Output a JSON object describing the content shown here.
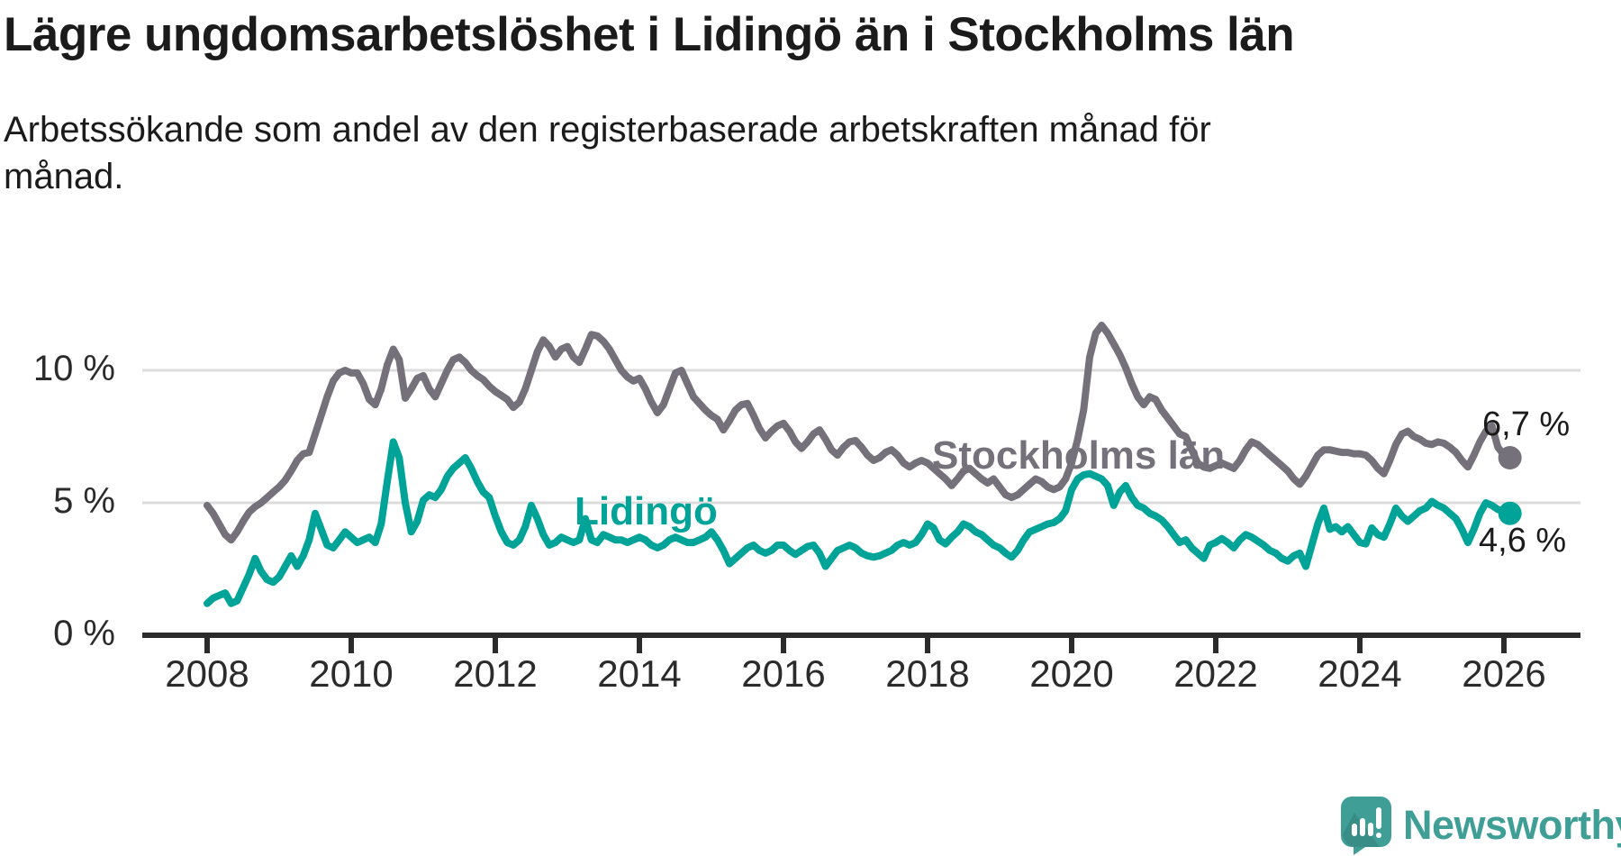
{
  "header": {
    "title": "Lägre ungdomsarbetslöshet i Lidingö än i Stockholms län",
    "subtitle": "Arbetssökande som andel av den registerbaserade arbetskraften månad för\nmånad."
  },
  "chart_data": {
    "type": "line",
    "title": "Lägre ungdomsarbetslöshet i Lidingö än i Stockholms län",
    "subtitle": "Arbetssökande som andel av den registerbaserade arbetskraften månad för månad.",
    "x_start_year": 2008,
    "x_step_months": 1,
    "x_end_label_period": "2026-02",
    "xlim": [
      2007.1,
      2027.1
    ],
    "ylim": [
      0,
      12
    ],
    "grid": "horizontal",
    "legend": "inline-labels",
    "x_ticks": [
      2008,
      2010,
      2012,
      2014,
      2016,
      2018,
      2020,
      2022,
      2024,
      2026
    ],
    "y_ticks": [
      {
        "value": 0,
        "label": "0 %"
      },
      {
        "value": 5,
        "label": "5 %"
      },
      {
        "value": 10,
        "label": "10 %"
      }
    ],
    "series": [
      {
        "name": "Stockholms län",
        "color": "#75717a",
        "end_label": "6,7 %",
        "values": [
          4.9,
          4.6,
          4.2,
          3.8,
          3.6,
          3.9,
          4.3,
          4.65,
          4.85,
          5.0,
          5.2,
          5.4,
          5.6,
          5.85,
          6.2,
          6.6,
          6.85,
          6.9,
          7.6,
          8.3,
          9.0,
          9.6,
          9.9,
          10.0,
          9.9,
          9.9,
          9.5,
          8.9,
          8.7,
          9.3,
          10.2,
          10.8,
          10.4,
          8.95,
          9.3,
          9.7,
          9.8,
          9.3,
          9.0,
          9.5,
          10.0,
          10.4,
          10.5,
          10.3,
          10.0,
          9.8,
          9.65,
          9.4,
          9.2,
          9.05,
          8.9,
          8.6,
          8.8,
          9.3,
          10.0,
          10.7,
          11.15,
          10.9,
          10.5,
          10.8,
          10.9,
          10.5,
          10.3,
          10.8,
          11.35,
          11.3,
          11.1,
          10.8,
          10.4,
          10.0,
          9.75,
          9.6,
          9.7,
          9.3,
          8.8,
          8.4,
          8.7,
          9.3,
          9.9,
          10.0,
          9.5,
          9.0,
          8.75,
          8.5,
          8.3,
          8.15,
          7.75,
          8.1,
          8.5,
          8.7,
          8.75,
          8.3,
          7.8,
          7.45,
          7.7,
          7.9,
          8.0,
          7.7,
          7.3,
          7.05,
          7.3,
          7.6,
          7.75,
          7.4,
          7.0,
          6.8,
          7.1,
          7.3,
          7.35,
          7.1,
          6.8,
          6.6,
          6.7,
          6.9,
          7.0,
          6.8,
          6.5,
          6.35,
          6.5,
          6.6,
          6.5,
          6.3,
          6.1,
          5.9,
          5.65,
          5.9,
          6.2,
          6.3,
          6.1,
          5.9,
          5.75,
          5.9,
          5.6,
          5.3,
          5.2,
          5.3,
          5.5,
          5.7,
          5.9,
          5.8,
          5.6,
          5.5,
          5.6,
          5.9,
          6.5,
          7.4,
          8.5,
          10.5,
          11.4,
          11.7,
          11.4,
          11.0,
          10.6,
          10.1,
          9.5,
          9.0,
          8.7,
          9.0,
          8.9,
          8.5,
          8.2,
          7.9,
          7.6,
          7.5,
          7.0,
          6.5,
          6.35,
          6.3,
          6.4,
          6.5,
          6.4,
          6.3,
          6.6,
          7.0,
          7.3,
          7.2,
          7.0,
          6.8,
          6.6,
          6.4,
          6.2,
          5.9,
          5.7,
          6.0,
          6.4,
          6.8,
          7.0,
          7.0,
          6.95,
          6.9,
          6.9,
          6.85,
          6.85,
          6.8,
          6.6,
          6.3,
          6.1,
          6.6,
          7.2,
          7.6,
          7.7,
          7.5,
          7.4,
          7.25,
          7.2,
          7.3,
          7.25,
          7.1,
          6.9,
          6.6,
          6.35,
          6.8,
          7.3,
          7.7,
          7.9,
          7.1,
          6.8,
          6.7
        ]
      },
      {
        "name": "Lidingö",
        "color": "#00a397",
        "end_label": "4,6 %",
        "values": [
          1.2,
          1.4,
          1.5,
          1.6,
          1.2,
          1.3,
          1.8,
          2.3,
          2.9,
          2.4,
          2.1,
          2.0,
          2.2,
          2.6,
          3.0,
          2.6,
          3.0,
          3.6,
          4.6,
          4.0,
          3.4,
          3.3,
          3.6,
          3.9,
          3.7,
          3.5,
          3.6,
          3.7,
          3.5,
          4.2,
          5.8,
          7.3,
          6.7,
          5.0,
          3.9,
          4.3,
          5.1,
          5.3,
          5.2,
          5.5,
          6.0,
          6.3,
          6.5,
          6.7,
          6.3,
          5.8,
          5.4,
          5.2,
          4.5,
          3.9,
          3.5,
          3.4,
          3.6,
          4.1,
          4.9,
          4.4,
          3.8,
          3.4,
          3.5,
          3.7,
          3.6,
          3.5,
          3.6,
          4.4,
          3.6,
          3.5,
          3.8,
          3.7,
          3.6,
          3.6,
          3.5,
          3.6,
          3.7,
          3.6,
          3.4,
          3.3,
          3.4,
          3.6,
          3.7,
          3.6,
          3.5,
          3.5,
          3.6,
          3.7,
          3.9,
          3.6,
          3.2,
          2.7,
          2.9,
          3.1,
          3.3,
          3.4,
          3.2,
          3.1,
          3.2,
          3.4,
          3.4,
          3.2,
          3.05,
          3.2,
          3.35,
          3.4,
          3.1,
          2.6,
          2.9,
          3.2,
          3.3,
          3.4,
          3.3,
          3.1,
          3.0,
          2.95,
          3.0,
          3.1,
          3.2,
          3.4,
          3.5,
          3.4,
          3.5,
          3.8,
          4.2,
          4.05,
          3.6,
          3.45,
          3.7,
          3.9,
          4.2,
          4.1,
          3.9,
          3.8,
          3.6,
          3.4,
          3.3,
          3.1,
          2.95,
          3.2,
          3.6,
          3.9,
          4.0,
          4.1,
          4.2,
          4.25,
          4.4,
          4.7,
          5.5,
          5.9,
          6.05,
          6.1,
          6.0,
          5.9,
          5.65,
          4.9,
          5.4,
          5.65,
          5.2,
          4.9,
          4.8,
          4.6,
          4.5,
          4.35,
          4.1,
          3.8,
          3.5,
          3.6,
          3.3,
          3.1,
          2.9,
          3.4,
          3.5,
          3.65,
          3.5,
          3.3,
          3.6,
          3.8,
          3.7,
          3.55,
          3.4,
          3.2,
          3.1,
          2.9,
          2.8,
          3.0,
          3.1,
          2.6,
          3.4,
          4.2,
          4.8,
          4.0,
          4.1,
          3.9,
          4.1,
          3.8,
          3.5,
          3.45,
          4.05,
          3.8,
          3.7,
          4.2,
          4.8,
          4.5,
          4.3,
          4.5,
          4.7,
          4.8,
          5.05,
          4.9,
          4.8,
          4.6,
          4.4,
          4.0,
          3.5,
          4.0,
          4.6,
          5.0,
          4.9,
          4.75,
          4.7,
          4.6
        ]
      }
    ]
  },
  "footer": {
    "brand": "Newsworthy"
  },
  "colors": {
    "grid": "#dcdcdc",
    "axis": "#2b2b2b",
    "tick_text": "#2b2b2b",
    "logo": "#3f9e96"
  }
}
